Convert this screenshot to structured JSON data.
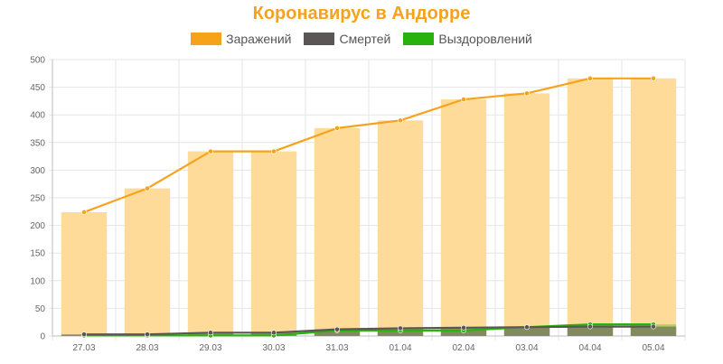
{
  "chart_data": {
    "type": "bar",
    "title": "Коронавирус в Андорре",
    "categories": [
      "27.03",
      "28.03",
      "29.03",
      "30.03",
      "31.03",
      "01.04",
      "02.04",
      "03.04",
      "04.04",
      "05.04"
    ],
    "series": [
      {
        "name": "Заражений",
        "values": [
          224,
          267,
          334,
          334,
          376,
          390,
          428,
          439,
          466,
          466
        ],
        "color": "#f7a21b",
        "bar_color": "#fedb98"
      },
      {
        "name": "Смертей",
        "values": [
          3,
          3,
          6,
          6,
          12,
          14,
          15,
          16,
          17,
          17
        ],
        "color": "#5a5655"
      },
      {
        "name": "Выздоровлений",
        "values": [
          1,
          1,
          1,
          1,
          10,
          10,
          10,
          16,
          21,
          21
        ],
        "color": "#27b30b"
      }
    ],
    "yticks": [
      "0",
      "50",
      "100",
      "150",
      "200",
      "250",
      "300",
      "350",
      "400",
      "450",
      "500"
    ],
    "ylim": [
      0,
      500
    ],
    "grid": true,
    "legend_position": "top"
  }
}
